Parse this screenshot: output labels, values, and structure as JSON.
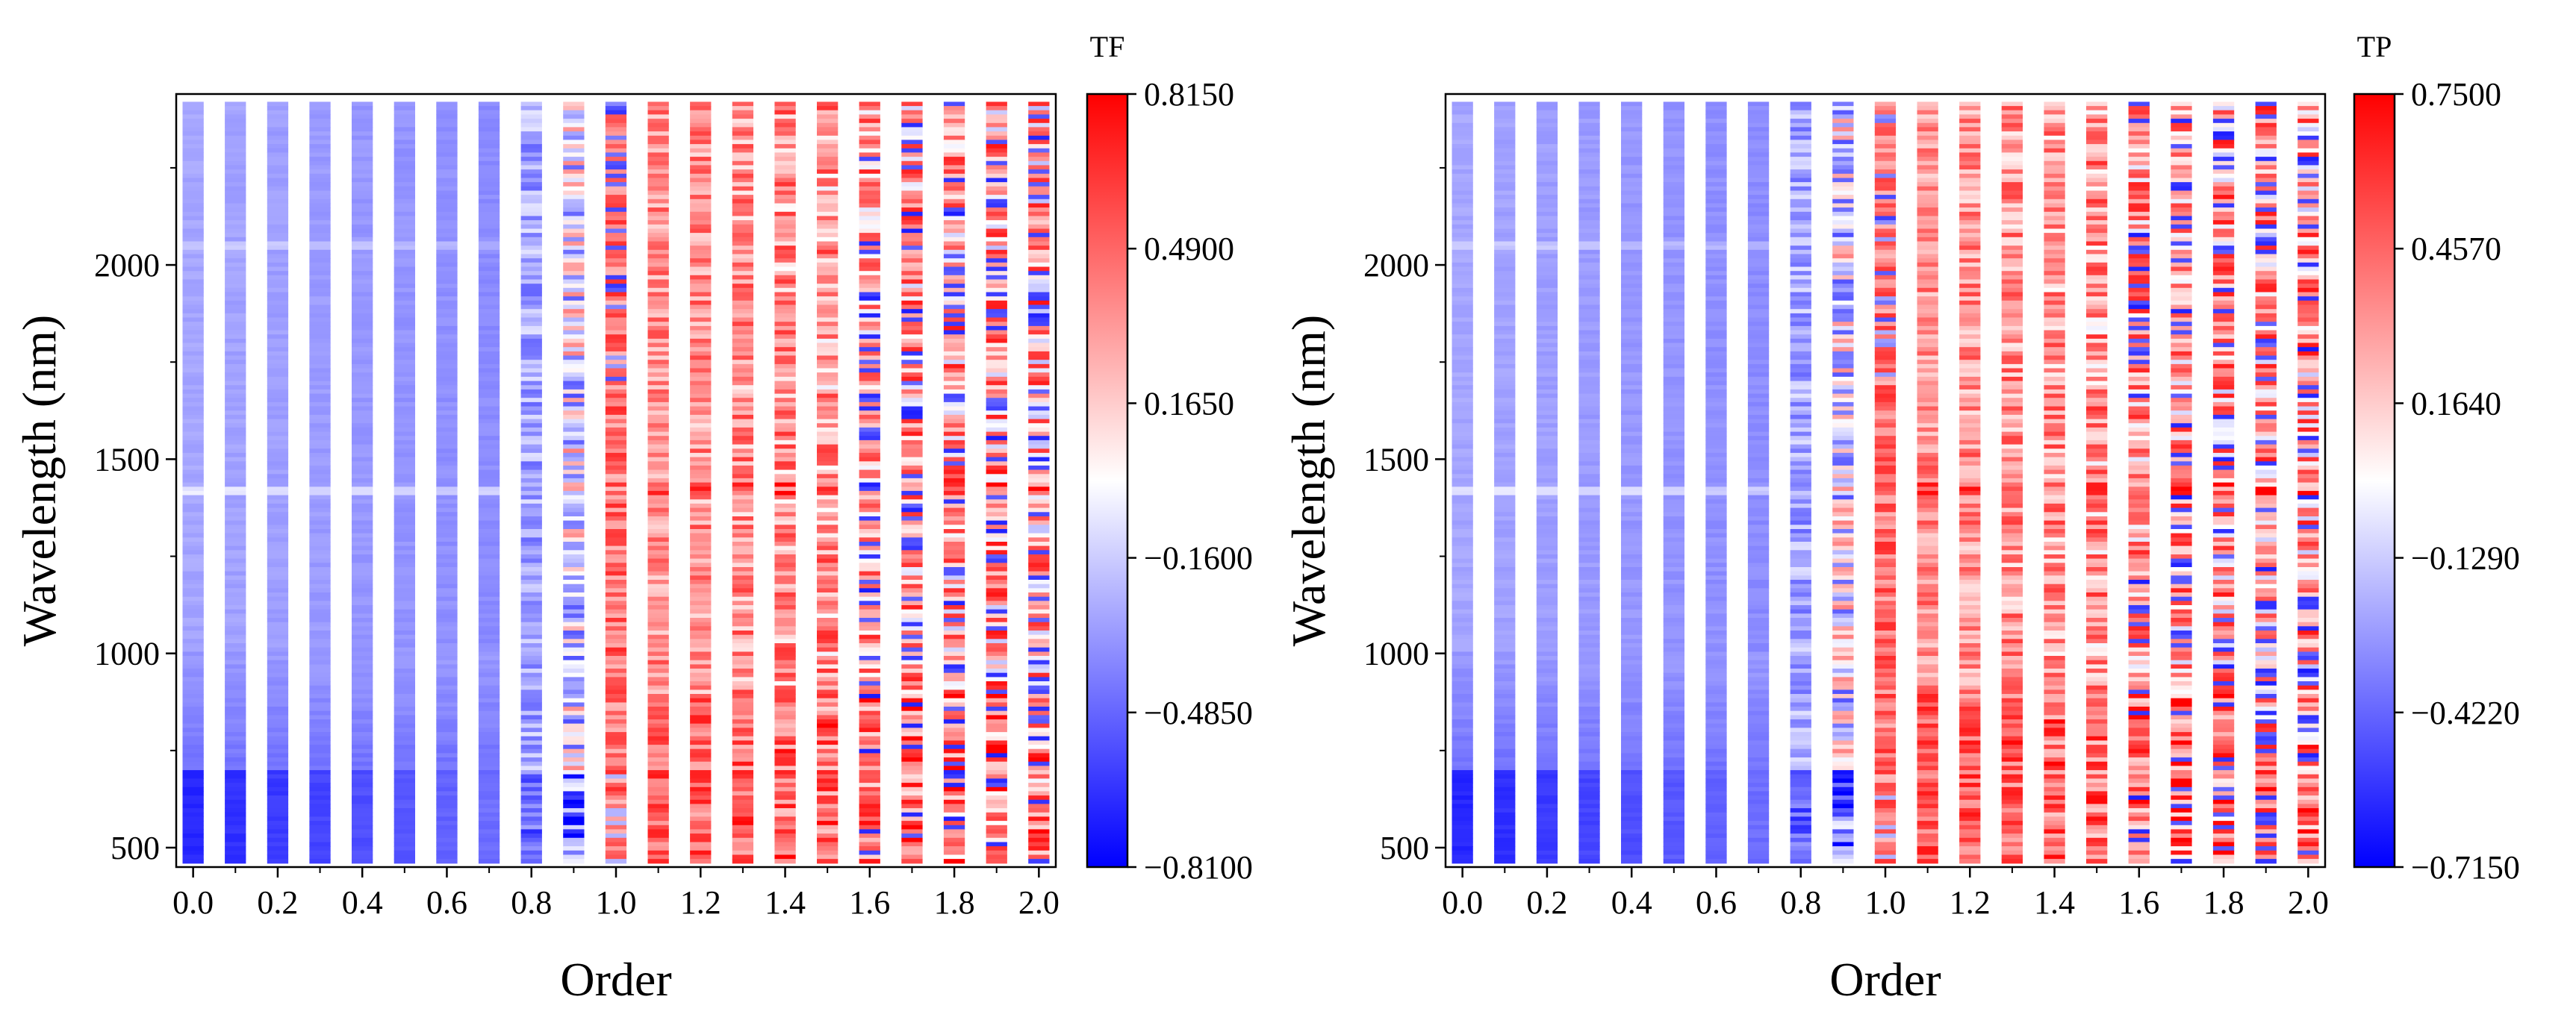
{
  "chart_data": [
    {
      "type": "heatmap",
      "title": "",
      "xlabel": "Order",
      "ylabel": "Wavelength (nm)",
      "x_ticks": [
        "0.0",
        "0.2",
        "0.4",
        "0.6",
        "0.8",
        "1.0",
        "1.2",
        "1.4",
        "1.6",
        "1.8",
        "2.0"
      ],
      "x_tick_values": [
        0.0,
        0.2,
        0.4,
        0.6,
        0.8,
        1.0,
        1.2,
        1.4,
        1.6,
        1.8,
        2.0
      ],
      "y_ticks": [
        "500",
        "1000",
        "1500",
        "2000"
      ],
      "y_tick_values": [
        500,
        1000,
        1500,
        2000
      ],
      "orders": [
        0.0,
        0.1,
        0.2,
        0.3,
        0.4,
        0.5,
        0.6,
        0.7,
        0.8,
        0.9,
        1.0,
        1.1,
        1.2,
        1.3,
        1.4,
        1.5,
        1.6,
        1.7,
        1.8,
        1.9,
        2.0
      ],
      "xlim": [
        -0.04,
        2.04
      ],
      "ylim": [
        450,
        2440
      ],
      "colorbar": {
        "title": "TF",
        "min": -0.81,
        "max": 0.815,
        "ticks": [
          "0.8150",
          "0.4900",
          "0.1650",
          "−0.1600",
          "−0.4850",
          "−0.8100"
        ],
        "tick_values": [
          0.815,
          0.49,
          0.165,
          -0.16,
          -0.485,
          -0.81
        ],
        "colors": [
          "#0000ff",
          "#ffffff",
          "#ff0000"
        ]
      }
    },
    {
      "type": "heatmap",
      "title": "",
      "xlabel": "Order",
      "ylabel": "Wavelength (nm)",
      "x_ticks": [
        "0.0",
        "0.2",
        "0.4",
        "0.6",
        "0.8",
        "1.0",
        "1.2",
        "1.4",
        "1.6",
        "1.8",
        "2.0"
      ],
      "x_tick_values": [
        0.0,
        0.2,
        0.4,
        0.6,
        0.8,
        1.0,
        1.2,
        1.4,
        1.6,
        1.8,
        2.0
      ],
      "y_ticks": [
        "500",
        "1000",
        "1500",
        "2000"
      ],
      "y_tick_values": [
        500,
        1000,
        1500,
        2000
      ],
      "orders": [
        0.0,
        0.1,
        0.2,
        0.3,
        0.4,
        0.5,
        0.6,
        0.7,
        0.8,
        0.9,
        1.0,
        1.1,
        1.2,
        1.3,
        1.4,
        1.5,
        1.6,
        1.7,
        1.8,
        1.9,
        2.0
      ],
      "xlim": [
        -0.04,
        2.04
      ],
      "ylim": [
        450,
        2440
      ],
      "colorbar": {
        "title": "TP",
        "min": -0.715,
        "max": 0.75,
        "ticks": [
          "0.7500",
          "0.4570",
          "0.1640",
          "−0.1290",
          "−0.4220",
          "−0.7150"
        ],
        "tick_values": [
          0.75,
          0.457,
          0.164,
          -0.129,
          -0.422,
          -0.715
        ],
        "colors": [
          "#0000ff",
          "#ffffff",
          "#ff0000"
        ]
      }
    }
  ]
}
